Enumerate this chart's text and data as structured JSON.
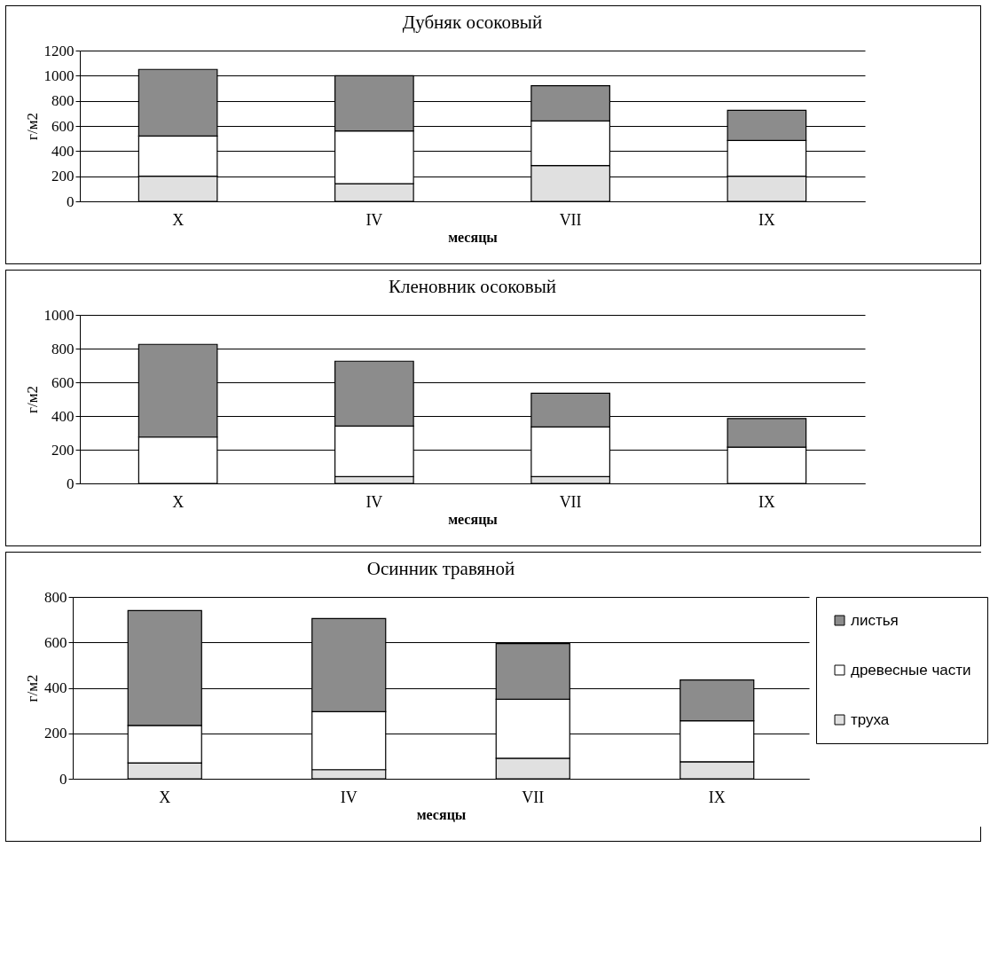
{
  "chart_data": [
    {
      "type": "bar",
      "title": "Дубняк осоковый",
      "xlabel": "месяцы",
      "ylabel": "г/м2",
      "categories": [
        "X",
        "IV",
        "VII",
        "IX"
      ],
      "stacked": true,
      "ylim": [
        0,
        1200
      ],
      "yticks": [
        0,
        200,
        400,
        600,
        800,
        1000,
        1200
      ],
      "grid": "y",
      "legend": false,
      "series": [
        {
          "color": "#e0e0e0",
          "values": [
            200,
            140,
            285,
            200
          ]
        },
        {
          "color": "#ffffff",
          "values": [
            320,
            420,
            355,
            285
          ]
        },
        {
          "color": "#8c8c8c",
          "values": [
            530,
            440,
            280,
            240
          ]
        }
      ]
    },
    {
      "type": "bar",
      "title": "Кленовник осоковый",
      "xlabel": "месяцы",
      "ylabel": "г/м2",
      "categories": [
        "X",
        "IV",
        "VII",
        "IX"
      ],
      "stacked": true,
      "ylim": [
        0,
        1000
      ],
      "yticks": [
        0,
        200,
        400,
        600,
        800,
        1000
      ],
      "grid": "y",
      "legend": false,
      "series": [
        {
          "color": "#e0e0e0",
          "values": [
            0,
            40,
            40,
            0
          ]
        },
        {
          "color": "#ffffff",
          "values": [
            275,
            300,
            295,
            215
          ]
        },
        {
          "color": "#8c8c8c",
          "values": [
            550,
            385,
            200,
            170
          ]
        }
      ]
    },
    {
      "type": "bar",
      "title": "Осинник травяной",
      "xlabel": "месяцы",
      "ylabel": "г/м2",
      "categories": [
        "X",
        "IV",
        "VII",
        "IX"
      ],
      "stacked": true,
      "ylim": [
        0,
        800
      ],
      "yticks": [
        0,
        200,
        400,
        600,
        800
      ],
      "grid": "y",
      "legend": "right",
      "series": [
        {
          "name": "труха",
          "color": "#e0e0e0",
          "values": [
            70,
            40,
            90,
            75
          ]
        },
        {
          "name": "древесные части",
          "color": "#ffffff",
          "values": [
            165,
            255,
            260,
            180
          ]
        },
        {
          "name": "листья",
          "color": "#8c8c8c",
          "values": [
            505,
            410,
            245,
            180
          ]
        }
      ]
    }
  ]
}
